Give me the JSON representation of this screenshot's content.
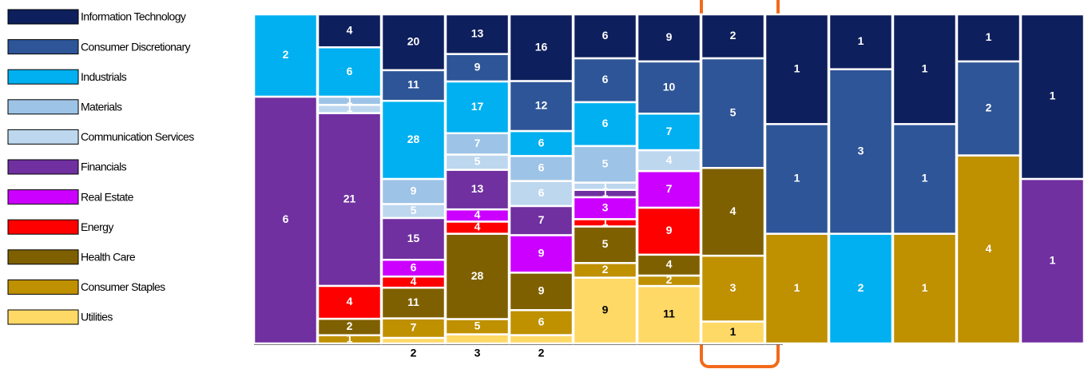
{
  "chart_data": {
    "type": "stacked_bar_100",
    "series": [
      {
        "name": "Information Technology",
        "color": "#0d1f5c",
        "values": [
          null,
          4,
          20,
          13,
          16,
          6,
          9,
          2,
          1,
          1,
          1,
          1,
          1
        ]
      },
      {
        "name": "Consumer Discretionary",
        "color": "#2e5597",
        "values": [
          null,
          null,
          11,
          9,
          12,
          6,
          10,
          5,
          1,
          3,
          1,
          2,
          null
        ]
      },
      {
        "name": "Industrials",
        "color": "#00b0f0",
        "values": [
          2,
          6,
          28,
          17,
          6,
          6,
          7,
          null,
          null,
          2,
          null,
          null,
          null
        ]
      },
      {
        "name": "Materials",
        "color": "#9dc3e6",
        "values": [
          null,
          1,
          9,
          7,
          6,
          5,
          null,
          null,
          null,
          null,
          null,
          null,
          null
        ]
      },
      {
        "name": "Communication Services",
        "color": "#bdd7ee",
        "values": [
          null,
          1,
          5,
          5,
          6,
          1,
          4,
          null,
          null,
          null,
          null,
          null,
          null
        ]
      },
      {
        "name": "Financials",
        "color": "#7030a0",
        "values": [
          6,
          21,
          15,
          13,
          7,
          1,
          null,
          null,
          null,
          null,
          null,
          null,
          1
        ]
      },
      {
        "name": "Real Estate",
        "color": "#cc00ff",
        "values": [
          null,
          null,
          6,
          4,
          9,
          3,
          7,
          null,
          null,
          null,
          null,
          null,
          null
        ]
      },
      {
        "name": "Energy",
        "color": "#ff0000",
        "values": [
          null,
          4,
          4,
          4,
          null,
          1,
          9,
          null,
          null,
          null,
          null,
          null,
          null
        ]
      },
      {
        "name": "Health Care",
        "color": "#7f6000",
        "values": [
          null,
          2,
          11,
          28,
          9,
          5,
          4,
          4,
          null,
          null,
          null,
          null,
          null
        ]
      },
      {
        "name": "Consumer Staples",
        "color": "#bf9000",
        "values": [
          null,
          1,
          7,
          5,
          6,
          2,
          2,
          3,
          1,
          null,
          1,
          4,
          null
        ]
      },
      {
        "name": "Utilities",
        "color": "#ffd966",
        "values": [
          null,
          null,
          2,
          3,
          2,
          9,
          11,
          1,
          null,
          null,
          null,
          null,
          null
        ]
      }
    ]
  }
}
